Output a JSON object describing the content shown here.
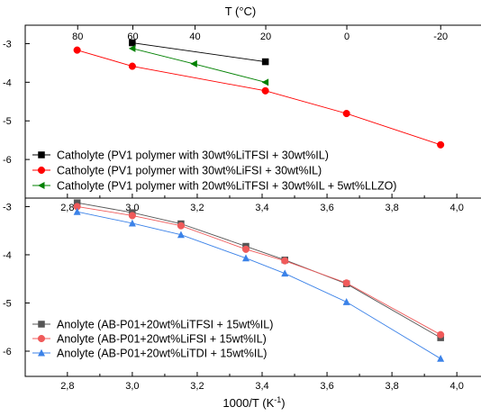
{
  "chart_data": [
    {
      "type": "line",
      "panel": "top",
      "top_axis_title": "T (°C)",
      "top_axis_ticks": [
        80,
        60,
        40,
        20,
        0,
        -20
      ],
      "x_ticks": [
        2.8,
        3.0,
        3.2,
        3.4,
        3.6,
        3.8,
        4.0
      ],
      "x_tick_labels": [
        "2,8",
        "3,0",
        "3,2",
        "3,4",
        "3,6",
        "3,8",
        "4,0"
      ],
      "xlim": [
        2.67,
        4.08
      ],
      "y_scale": "log",
      "ylim": [
        1e-07,
        0.003
      ],
      "y_tick_labels": [
        "-3",
        "-4",
        "-5",
        "-6"
      ],
      "legend_position": "bottom-left",
      "series": [
        {
          "name": "Catholyte (PV1 polymer with 30wt%LiTFSI + 30wt%IL)",
          "color": "#000000",
          "marker": "square",
          "x": [
            3.0,
            3.41
          ],
          "y": [
            0.00105,
            0.00034
          ]
        },
        {
          "name": "Catholyte (PV1 polymer with 30wt%LiFSI + 30wt%IL)",
          "color": "#ff0000",
          "marker": "circle",
          "x": [
            2.83,
            3.0,
            3.41,
            3.66,
            3.95
          ],
          "y": [
            0.00068,
            0.00026,
            6e-05,
            1.55e-05,
            2.4e-06
          ]
        },
        {
          "name": "Catholyte (PV1 polymer with 20wt%LiTFSI + 30wt%IL + 5wt%LLZO)",
          "color": "#008000",
          "marker": "triangle-left",
          "x": [
            3.0,
            3.19,
            3.41
          ],
          "y": [
            0.00075,
            0.0003,
            0.0001
          ]
        }
      ]
    },
    {
      "type": "line",
      "panel": "bottom",
      "xlabel_base": "1000/T (K",
      "xlabel_sup": "-1",
      "xlabel_end": ")",
      "x_ticks": [
        2.8,
        3.0,
        3.2,
        3.4,
        3.6,
        3.8,
        4.0
      ],
      "x_tick_labels": [
        "2,8",
        "3,0",
        "3,2",
        "3,4",
        "3,6",
        "3,8",
        "4,0"
      ],
      "xlim": [
        2.67,
        4.08
      ],
      "y_scale": "log",
      "ylim": [
        3e-07,
        0.0015
      ],
      "y_tick_labels": [
        "-3",
        "-4",
        "-5",
        "-6"
      ],
      "legend_position": "bottom-left",
      "series": [
        {
          "name": "Anolyte (AB-P01+20wt%LiTFSI + 15wt%IL)",
          "color": "#555555",
          "marker": "square",
          "x": [
            2.83,
            3.0,
            3.15,
            3.35,
            3.47,
            3.66,
            3.95
          ],
          "y": [
            0.0012,
            0.00075,
            0.00044,
            0.00015,
            7.8e-05,
            2.5e-05,
            1.9e-06
          ]
        },
        {
          "name": "Anolyte (AB-P01+20wt%LiFSI + 15wt%IL)",
          "color": "#f05a5a",
          "marker": "circle",
          "x": [
            2.83,
            3.0,
            3.15,
            3.35,
            3.47,
            3.66,
            3.95
          ],
          "y": [
            0.001,
            0.00065,
            0.0004,
            0.00013,
            7.5e-05,
            2.6e-05,
            2.2e-06
          ]
        },
        {
          "name": "Anolyte (AB-P01+20wt%LiTDI + 15wt%IL)",
          "color": "#3b82e8",
          "marker": "triangle-up",
          "x": [
            2.83,
            3.0,
            3.15,
            3.35,
            3.47,
            3.66,
            3.95
          ],
          "y": [
            0.00078,
            0.00045,
            0.00026,
            8.5e-05,
            4.1e-05,
            1.05e-05,
            7e-07
          ]
        }
      ]
    }
  ]
}
